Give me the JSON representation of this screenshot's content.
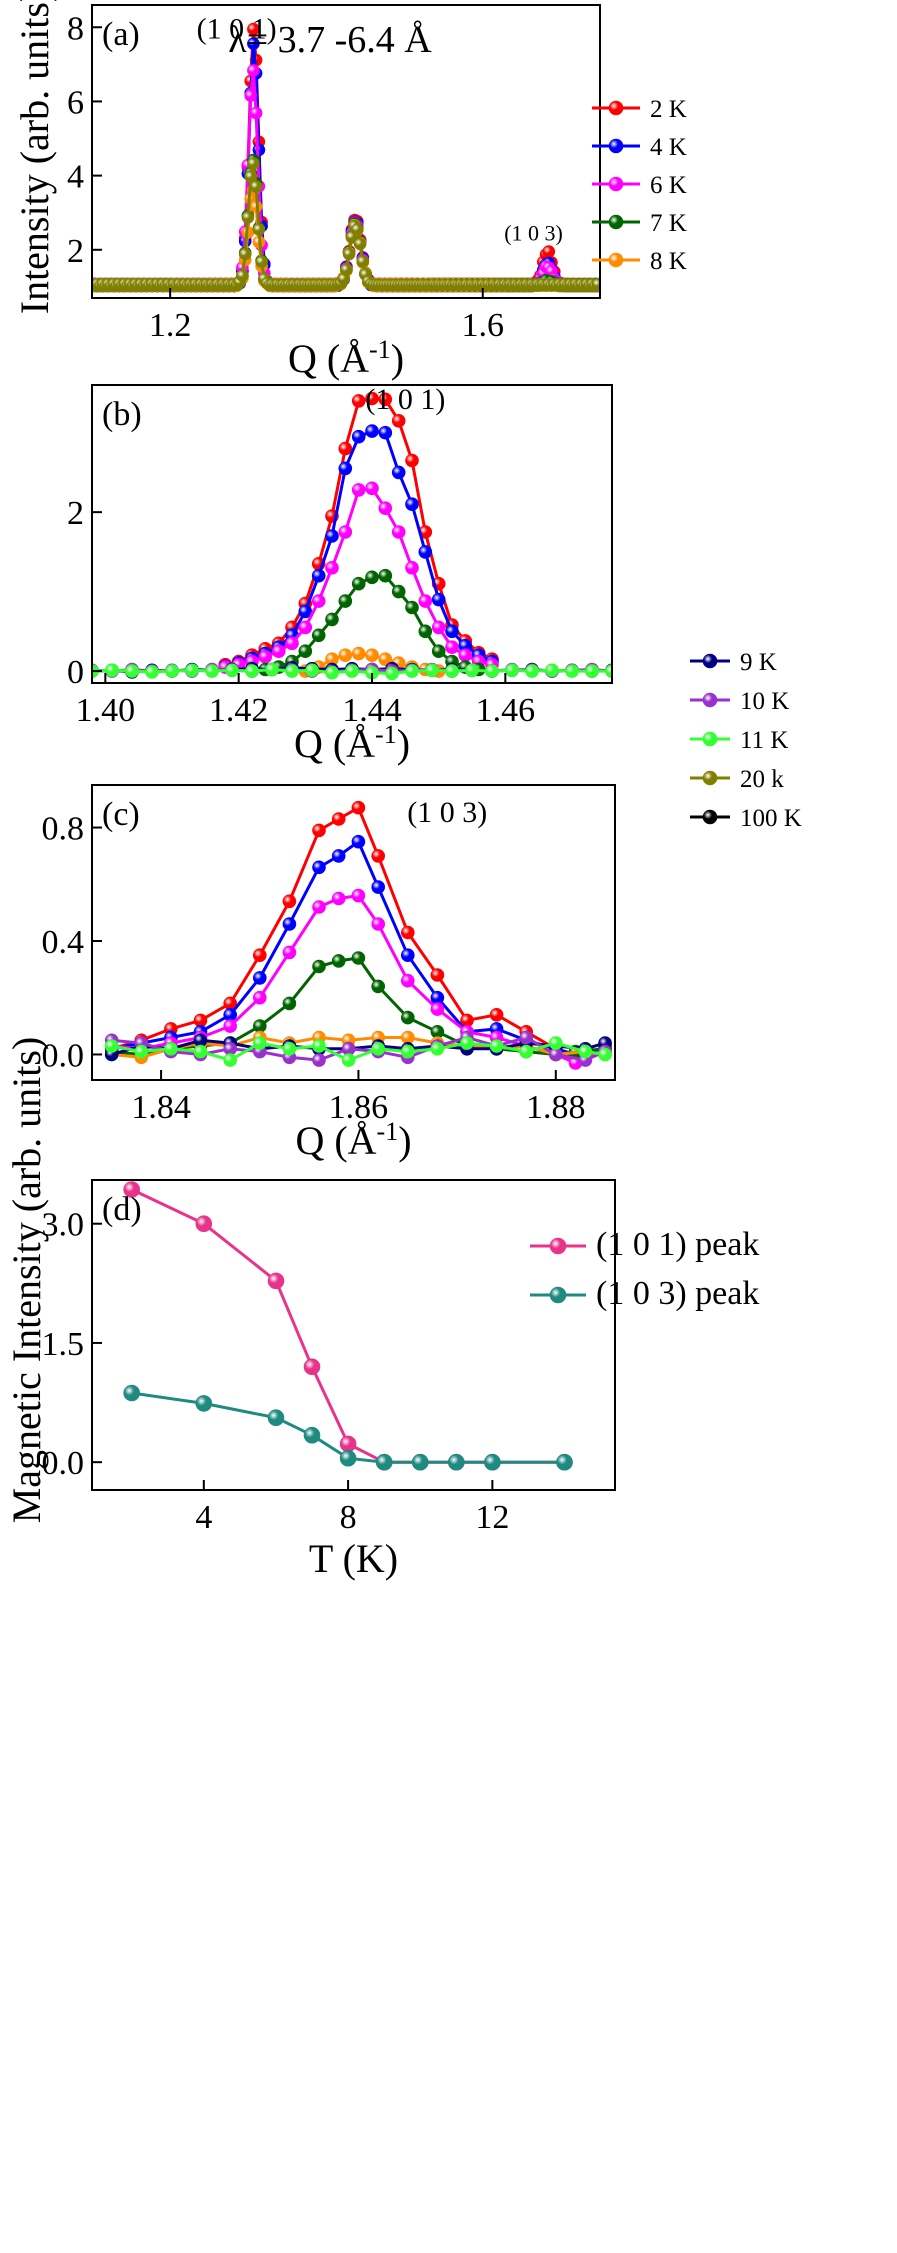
{
  "figure": {
    "shared_ylabel": "Magnetic Intensity (arb. units)"
  },
  "chart_data": [
    {
      "panel": "(a)",
      "type": "line",
      "title": "λ= 3.7 -6.4 Å",
      "xlabel": "Q (Å-1)",
      "ylabel": "Intensity (arb. units)",
      "xlim": [
        1.1,
        1.75
      ],
      "ylim": [
        0.7,
        8.6
      ],
      "xticks": [
        1.2,
        1.6
      ],
      "yticks": [
        2,
        4,
        6,
        8
      ],
      "legend_position": "right",
      "peak_labels": [
        {
          "text": "(1 0 1)",
          "q": 1.285,
          "i": 7.7
        },
        {
          "text": "(1 0 3)",
          "q": 1.665,
          "i": 2.25
        }
      ],
      "series": [
        {
          "name": "2 K",
          "color": "#ff0000",
          "baseline": 1.05,
          "peaks": [
            [
              1.307,
              6.9,
              0.006
            ],
            [
              1.437,
              1.8,
              0.007
            ],
            [
              1.683,
              0.9,
              0.006
            ]
          ]
        },
        {
          "name": "4 K",
          "color": "#0000ff",
          "baseline": 1.05,
          "peaks": [
            [
              1.307,
              6.5,
              0.006
            ],
            [
              1.437,
              1.75,
              0.007
            ],
            [
              1.683,
              0.6,
              0.006
            ]
          ]
        },
        {
          "name": "6 K",
          "color": "#ff00ff",
          "baseline": 1.05,
          "peaks": [
            [
              1.306,
              5.8,
              0.006
            ],
            [
              1.437,
              1.7,
              0.007
            ],
            [
              1.683,
              0.5,
              0.006
            ]
          ]
        },
        {
          "name": "7 K",
          "color": "#006400",
          "baseline": 1.05,
          "peaks": [
            [
              1.306,
              3.4,
              0.006
            ],
            [
              1.437,
              1.65,
              0.007
            ],
            [
              1.683,
              0.1,
              0.006
            ]
          ]
        },
        {
          "name": "8 K",
          "color": "#ff8c00",
          "baseline": 1.05,
          "peaks": [
            [
              1.306,
              2.6,
              0.006
            ],
            [
              1.437,
              1.6,
              0.007
            ]
          ]
        },
        {
          "name": "",
          "color": "#808000",
          "baseline": 1.05,
          "peaks": [
            [
              1.306,
              3.3,
              0.006
            ],
            [
              1.437,
              1.6,
              0.007
            ]
          ]
        }
      ]
    },
    {
      "panel": "(b)",
      "type": "line",
      "xlabel": "Q (Å-1)",
      "xlim": [
        1.398,
        1.476
      ],
      "ylim": [
        -0.15,
        3.6
      ],
      "xticks": [
        1.4,
        1.42,
        1.44,
        1.46
      ],
      "yticks": [
        0,
        2
      ],
      "legend_position": "right",
      "peak_labels": [
        {
          "text": "(1 0 1)",
          "q": 1.445,
          "i": 3.3
        }
      ],
      "series": [
        {
          "name": "",
          "color": "#ff0000",
          "x": [
            1.418,
            1.42,
            1.422,
            1.424,
            1.426,
            1.428,
            1.43,
            1.432,
            1.434,
            1.436,
            1.438,
            1.44,
            1.442,
            1.444,
            1.446,
            1.448,
            1.45,
            1.452,
            1.454,
            1.456,
            1.458
          ],
          "y": [
            0.08,
            0.12,
            0.2,
            0.28,
            0.35,
            0.55,
            0.85,
            1.35,
            1.95,
            2.8,
            3.4,
            3.43,
            3.42,
            3.15,
            2.65,
            1.75,
            1.1,
            0.58,
            0.38,
            0.23,
            0.15
          ]
        },
        {
          "name": "",
          "color": "#0000ff",
          "x": [
            1.418,
            1.42,
            1.422,
            1.424,
            1.426,
            1.428,
            1.43,
            1.432,
            1.434,
            1.436,
            1.438,
            1.44,
            1.442,
            1.444,
            1.446,
            1.448,
            1.45,
            1.452,
            1.454,
            1.456,
            1.458
          ],
          "y": [
            0.06,
            0.1,
            0.16,
            0.22,
            0.3,
            0.45,
            0.75,
            1.2,
            1.7,
            2.55,
            2.95,
            3.02,
            3.0,
            2.5,
            2.1,
            1.5,
            0.9,
            0.5,
            0.32,
            0.2,
            0.12
          ]
        },
        {
          "name": "",
          "color": "#ff00ff",
          "x": [
            1.418,
            1.42,
            1.422,
            1.424,
            1.426,
            1.428,
            1.43,
            1.432,
            1.434,
            1.436,
            1.438,
            1.44,
            1.442,
            1.444,
            1.446,
            1.448,
            1.45,
            1.452,
            1.454,
            1.456,
            1.458
          ],
          "y": [
            0.05,
            0.08,
            0.12,
            0.18,
            0.25,
            0.35,
            0.55,
            0.88,
            1.3,
            1.75,
            2.28,
            2.3,
            2.05,
            1.75,
            1.3,
            0.88,
            0.55,
            0.3,
            0.2,
            0.12,
            0.08
          ]
        },
        {
          "name": "",
          "color": "#006400",
          "x": [
            1.424,
            1.426,
            1.428,
            1.43,
            1.432,
            1.434,
            1.436,
            1.438,
            1.44,
            1.442,
            1.444,
            1.446,
            1.448,
            1.45,
            1.452,
            1.454,
            1.456
          ],
          "y": [
            0.02,
            0.05,
            0.12,
            0.25,
            0.45,
            0.65,
            0.88,
            1.1,
            1.18,
            1.2,
            1.0,
            0.8,
            0.5,
            0.25,
            0.12,
            0.05,
            0.02
          ]
        },
        {
          "name": "",
          "color": "#ff8c00",
          "x": [
            1.43,
            1.432,
            1.434,
            1.436,
            1.438,
            1.44,
            1.442,
            1.444,
            1.446,
            1.448,
            1.45
          ],
          "y": [
            0.0,
            0.05,
            0.15,
            0.2,
            0.22,
            0.2,
            0.15,
            0.1,
            0.05,
            0.02,
            0.0
          ]
        },
        {
          "name": "9 K",
          "color": "#000080",
          "x": [
            1.398,
            1.401,
            1.404,
            1.407,
            1.41,
            1.413,
            1.416,
            1.419,
            1.422,
            1.425,
            1.428,
            1.431,
            1.434,
            1.437,
            1.44,
            1.443,
            1.446,
            1.449,
            1.452,
            1.455,
            1.458,
            1.461,
            1.464,
            1.467,
            1.47,
            1.473,
            1.476
          ],
          "y": [
            0.0,
            0.01,
            -0.01,
            0.01,
            0.0,
            0.02,
            0.01,
            0.02,
            0.03,
            0.02,
            0.04,
            0.03,
            0.02,
            0.03,
            0.02,
            0.03,
            0.02,
            0.01,
            0.02,
            0.01,
            0.0,
            0.01,
            0.02,
            0.0,
            0.01,
            0.0,
            0.01
          ]
        },
        {
          "name": "10 K",
          "color": "#9932cc",
          "x": [
            1.398,
            1.401,
            1.404,
            1.407,
            1.41,
            1.413,
            1.416,
            1.419,
            1.422,
            1.425,
            1.428,
            1.431,
            1.434,
            1.437,
            1.44,
            1.443,
            1.446,
            1.449,
            1.452,
            1.455,
            1.458,
            1.461,
            1.464,
            1.467,
            1.47,
            1.473,
            1.476
          ],
          "y": [
            0.01,
            0.0,
            0.02,
            0.0,
            0.01,
            0.0,
            0.02,
            0.01,
            0.0,
            0.02,
            0.01,
            0.0,
            -0.01,
            0.01,
            0.02,
            0.0,
            0.01,
            0.02,
            0.0,
            0.01,
            0.0,
            0.02,
            0.01,
            0.0,
            0.01,
            0.02,
            0.0
          ]
        },
        {
          "name": "11 K",
          "color": "#33ff33",
          "x": [
            1.398,
            1.401,
            1.404,
            1.407,
            1.41,
            1.413,
            1.416,
            1.419,
            1.422,
            1.425,
            1.428,
            1.431,
            1.434,
            1.437,
            1.44,
            1.443,
            1.446,
            1.449,
            1.452,
            1.455,
            1.458,
            1.461,
            1.464,
            1.467,
            1.47,
            1.473,
            1.476
          ],
          "y": [
            0.0,
            0.01,
            0.0,
            -0.01,
            0.0,
            0.01,
            0.0,
            0.01,
            0.0,
            0.02,
            0.0,
            0.01,
            -0.02,
            0.0,
            -0.02,
            -0.03,
            0.0,
            0.01,
            0.0,
            0.01,
            0.0,
            0.01,
            0.0,
            0.01,
            0.0,
            0.0,
            0.0
          ]
        },
        {
          "name": "20 k",
          "color": "#808000",
          "x": [],
          "y": []
        },
        {
          "name": "100 K",
          "color": "#000000",
          "x": [],
          "y": []
        }
      ]
    },
    {
      "panel": "(c)",
      "type": "line",
      "xlabel": "Q (Å-1)",
      "xlim": [
        1.833,
        1.886
      ],
      "ylim": [
        -0.09,
        0.95
      ],
      "xticks": [
        1.84,
        1.86,
        1.88
      ],
      "yticks": [
        0.0,
        0.4,
        0.8
      ],
      "peak_labels": [
        {
          "text": "(1 0 3)",
          "q": 1.869,
          "i": 0.82
        }
      ],
      "series": [
        {
          "name": "",
          "color": "#ff0000",
          "x": [
            1.835,
            1.838,
            1.841,
            1.844,
            1.847,
            1.85,
            1.853,
            1.856,
            1.858,
            1.86,
            1.862,
            1.865,
            1.868,
            1.871,
            1.874,
            1.877,
            1.88,
            1.882,
            1.885
          ],
          "y": [
            0.02,
            0.05,
            0.09,
            0.12,
            0.18,
            0.35,
            0.54,
            0.79,
            0.83,
            0.87,
            0.7,
            0.43,
            0.28,
            0.12,
            0.14,
            0.08,
            0.02,
            -0.02,
            0.03
          ]
        },
        {
          "name": "",
          "color": "#0000ff",
          "x": [
            1.835,
            1.838,
            1.841,
            1.844,
            1.847,
            1.85,
            1.853,
            1.856,
            1.858,
            1.86,
            1.862,
            1.865,
            1.868,
            1.871,
            1.874,
            1.877,
            1.88,
            1.882,
            1.885
          ],
          "y": [
            0.02,
            0.04,
            0.06,
            0.08,
            0.14,
            0.27,
            0.46,
            0.66,
            0.7,
            0.75,
            0.59,
            0.35,
            0.2,
            0.08,
            0.09,
            0.05,
            0.02,
            0.0,
            0.02
          ]
        },
        {
          "name": "",
          "color": "#ff00ff",
          "x": [
            1.835,
            1.838,
            1.841,
            1.844,
            1.847,
            1.85,
            1.853,
            1.856,
            1.858,
            1.86,
            1.862,
            1.865,
            1.868,
            1.871,
            1.874,
            1.877,
            1.88,
            1.882,
            1.885
          ],
          "y": [
            0.03,
            0.02,
            0.04,
            0.06,
            0.1,
            0.2,
            0.36,
            0.52,
            0.55,
            0.56,
            0.46,
            0.26,
            0.16,
            0.08,
            0.06,
            0.03,
            0.0,
            -0.03,
            0.02
          ]
        },
        {
          "name": "",
          "color": "#006400",
          "x": [
            1.835,
            1.838,
            1.841,
            1.844,
            1.847,
            1.85,
            1.853,
            1.856,
            1.858,
            1.86,
            1.862,
            1.865,
            1.868,
            1.871,
            1.874,
            1.877,
            1.88,
            1.882,
            1.885
          ],
          "y": [
            0.01,
            0.0,
            0.02,
            0.03,
            0.04,
            0.1,
            0.18,
            0.31,
            0.33,
            0.34,
            0.24,
            0.13,
            0.08,
            0.03,
            0.02,
            0.01,
            0.0,
            0.01,
            0.02
          ]
        },
        {
          "name": "",
          "color": "#ff8c00",
          "x": [
            1.835,
            1.838,
            1.841,
            1.844,
            1.847,
            1.85,
            1.853,
            1.856,
            1.859,
            1.862,
            1.865,
            1.868,
            1.871,
            1.874,
            1.877,
            1.88,
            1.883,
            1.885
          ],
          "y": [
            0.0,
            -0.01,
            0.02,
            0.04,
            0.03,
            0.06,
            0.04,
            0.06,
            0.05,
            0.06,
            0.06,
            0.04,
            0.03,
            0.02,
            0.03,
            0.0,
            0.01,
            0.0
          ]
        },
        {
          "name": "",
          "color": "#000080",
          "x": [
            1.835,
            1.838,
            1.841,
            1.844,
            1.847,
            1.85,
            1.853,
            1.856,
            1.859,
            1.862,
            1.865,
            1.868,
            1.871,
            1.874,
            1.877,
            1.88,
            1.883,
            1.885
          ],
          "y": [
            0.0,
            0.03,
            0.02,
            0.05,
            0.04,
            0.02,
            0.03,
            0.02,
            0.02,
            0.03,
            0.02,
            0.03,
            0.02,
            0.02,
            0.04,
            0.03,
            0.02,
            0.04
          ]
        },
        {
          "name": "",
          "color": "#9932cc",
          "x": [
            1.835,
            1.838,
            1.841,
            1.844,
            1.847,
            1.85,
            1.853,
            1.856,
            1.859,
            1.862,
            1.865,
            1.868,
            1.871,
            1.874,
            1.877,
            1.88,
            1.883,
            1.885
          ],
          "y": [
            0.05,
            0.04,
            0.01,
            0.0,
            0.02,
            0.01,
            -0.01,
            -0.02,
            0.02,
            0.01,
            -0.01,
            0.03,
            0.06,
            0.03,
            0.06,
            0.0,
            -0.02,
            0.01
          ]
        },
        {
          "name": "",
          "color": "#33ff33",
          "x": [
            1.835,
            1.838,
            1.841,
            1.844,
            1.847,
            1.85,
            1.853,
            1.856,
            1.859,
            1.862,
            1.865,
            1.868,
            1.871,
            1.874,
            1.877,
            1.88,
            1.883,
            1.885
          ],
          "y": [
            0.03,
            0.01,
            0.02,
            0.01,
            -0.02,
            0.04,
            0.02,
            0.03,
            -0.02,
            0.02,
            0.01,
            0.02,
            0.04,
            0.03,
            0.01,
            0.04,
            0.01,
            0.0
          ]
        }
      ]
    },
    {
      "panel": "(d)",
      "type": "line",
      "xlabel": "T (K)",
      "xlim": [
        0.9,
        15.4
      ],
      "ylim": [
        -0.35,
        3.55
      ],
      "xticks": [
        4,
        8,
        12
      ],
      "yticks": [
        0.0,
        1.5,
        3.0
      ],
      "legend_position": "top-right",
      "series": [
        {
          "name": "(1 0 1) peak",
          "color": "#e8338a",
          "x": [
            2,
            4,
            6,
            7,
            8,
            9,
            10,
            11,
            12,
            14
          ],
          "y": [
            3.43,
            3.0,
            2.28,
            1.2,
            0.23,
            0.0,
            0.0,
            0.0,
            0.0,
            0.0
          ]
        },
        {
          "name": "(1 0 3) peak",
          "color": "#1e8a80",
          "x": [
            2,
            4,
            6,
            7,
            8,
            9,
            10,
            11,
            12,
            14
          ],
          "y": [
            0.87,
            0.74,
            0.56,
            0.34,
            0.05,
            0.0,
            0.0,
            0.0,
            0.0,
            0.0
          ]
        }
      ]
    }
  ]
}
